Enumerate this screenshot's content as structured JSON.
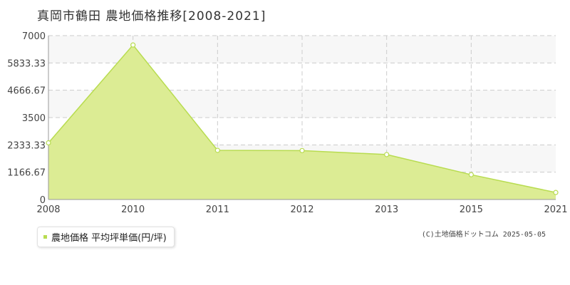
{
  "title": "真岡市鶴田  農地価格推移[2008-2021]",
  "legend": {
    "label": "農地価格 平均坪単価(円/坪)"
  },
  "copyright": "(C)土地価格ドットコム 2025-05-05",
  "colors": {
    "area_fill": "#dcec94",
    "line": "#b8dc50",
    "marker_fill": "#ffffff",
    "grid": "#cccccc",
    "band": "#f7f7f7",
    "axis": "#999999"
  },
  "chart_data": {
    "type": "area",
    "title": "真岡市鶴田  農地価格推移[2008-2021]",
    "xlabel": "",
    "ylabel": "",
    "x": [
      "2008",
      "2010",
      "2011",
      "2012",
      "2013",
      "2015",
      "2021"
    ],
    "x_ticks": [
      "2008",
      "2010",
      "2011",
      "2012",
      "2013",
      "2015",
      "2021"
    ],
    "ylim": [
      0,
      7000
    ],
    "y_ticks": [
      "0",
      "1166.67",
      "2333.33",
      "3500",
      "4666.67",
      "5833.33",
      "7000"
    ],
    "grid": true,
    "legend_position": "bottom-left",
    "series": [
      {
        "name": "農地価格 平均坪単価(円/坪)",
        "values": [
          2420,
          6600,
          2100,
          2090,
          1920,
          1060,
          300
        ]
      }
    ]
  }
}
